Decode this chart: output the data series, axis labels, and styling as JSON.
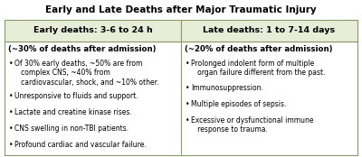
{
  "title": "Early and Late Deaths after Major Traumatic Injury",
  "title_fontsize": 7.5,
  "header_bg": "#e8edd8",
  "header_border": "#8a9a60",
  "header_left": "Early deaths: 3-6 to 24 h",
  "header_right": "Late deaths: 1 to 7-14 days",
  "header_fontsize": 6.8,
  "sub_left": "(~30% of deaths after admission)",
  "sub_right": "(~20% of deaths after admission)",
  "sub_fontsize": 6.2,
  "bullet_fontsize": 5.5,
  "bullets_left": [
    "Of 30% early deaths, ~50% are from\n   complex CNS, ~40% from\n   cardiovascular, shock, and ~10% other.",
    "Unresponsive to fluids and support.",
    "Lactate and creatine kinase rises.",
    "CNS swelling in non-TBI patients.",
    "Profound cardiac and vascular failure."
  ],
  "bullets_right": [
    "Prolonged indolent form of multiple\n   organ failure different from the past.",
    "Immunosuppression.",
    "Multiple episodes of sepsis.",
    "Excessive or dysfunctional immune\n   response to trauma."
  ],
  "bg_color": "#ffffff",
  "border_color": "#8a9a60",
  "fig_width": 4.0,
  "fig_height": 1.74,
  "dpi": 100
}
